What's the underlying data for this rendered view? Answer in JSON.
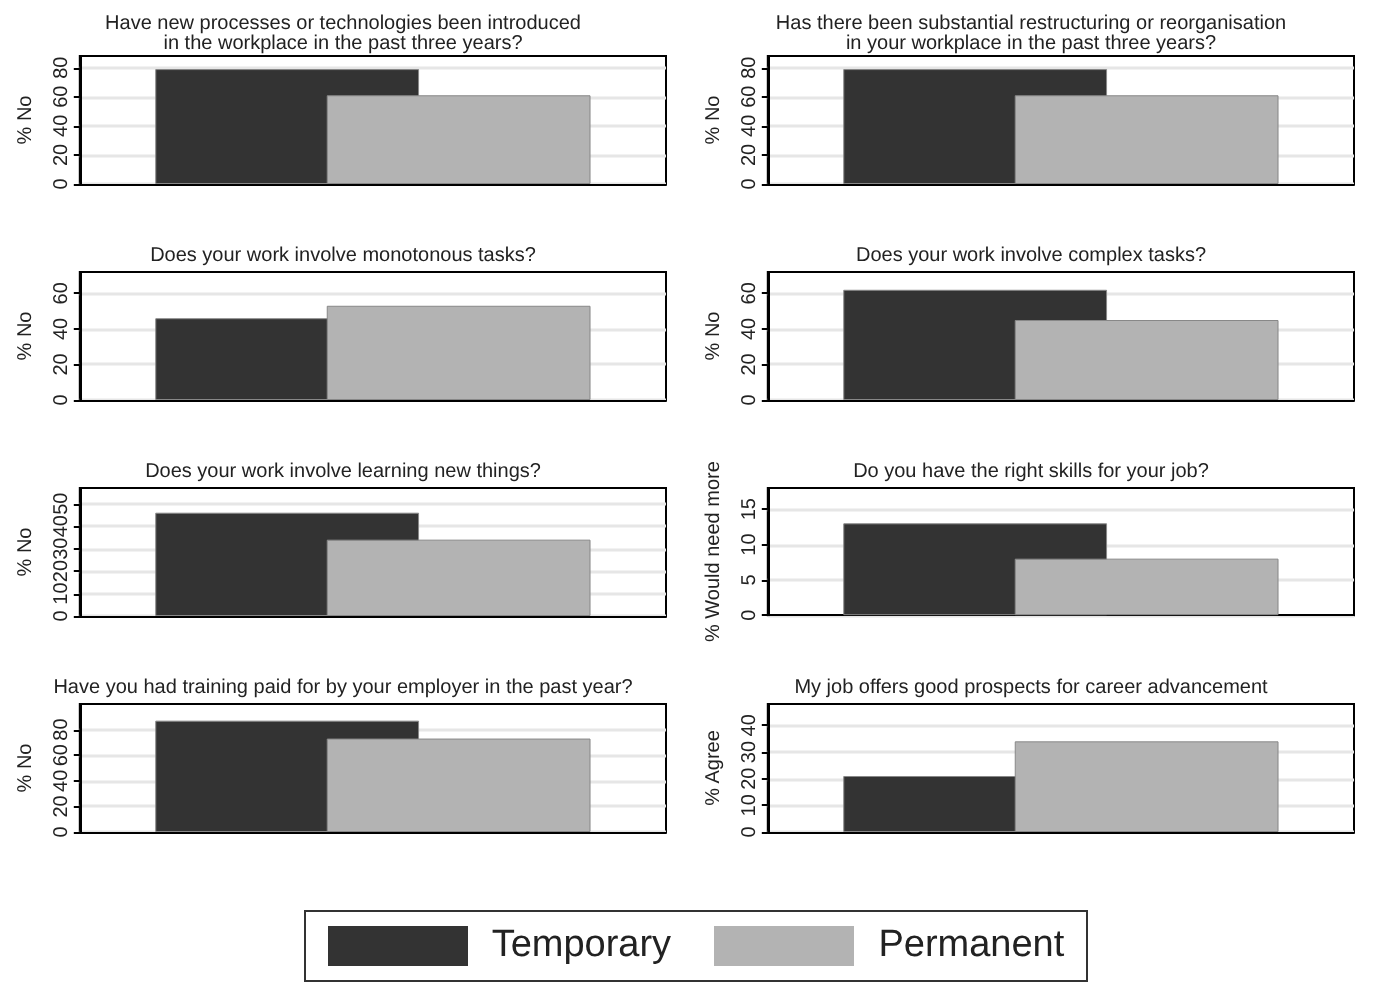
{
  "chart_data": [
    {
      "type": "bar",
      "title": "Have new processes or technologies been introduced\nin the workplace in the past three years?",
      "ylabel": "% No",
      "categories": [
        null
      ],
      "series": [
        {
          "name": "Temporary",
          "color": "#333333",
          "values": [
            79
          ]
        },
        {
          "name": "Permanent",
          "color": "#b3b3b3",
          "values": [
            61
          ]
        }
      ],
      "ylim": [
        0,
        88
      ],
      "yticks": [
        0,
        20,
        40,
        60,
        80
      ],
      "grid": "y",
      "legend": "bottom"
    },
    {
      "type": "bar",
      "title": "Has there been substantial restructuring or reorganisation\nin your workplace in the past three years?",
      "ylabel": "% No",
      "categories": [
        null
      ],
      "series": [
        {
          "name": "Temporary",
          "color": "#333333",
          "values": [
            79
          ]
        },
        {
          "name": "Permanent",
          "color": "#b3b3b3",
          "values": [
            61
          ]
        }
      ],
      "ylim": [
        0,
        88
      ],
      "yticks": [
        0,
        20,
        40,
        60,
        80
      ],
      "grid": "y",
      "legend": "bottom"
    },
    {
      "type": "bar",
      "title": "Does your work involve monotonous tasks?",
      "ylabel": "% No",
      "categories": [
        null
      ],
      "series": [
        {
          "name": "Temporary",
          "color": "#333333",
          "values": [
            46
          ]
        },
        {
          "name": "Permanent",
          "color": "#b3b3b3",
          "values": [
            53
          ]
        }
      ],
      "ylim": [
        0,
        72
      ],
      "yticks": [
        0,
        20,
        40,
        60
      ],
      "grid": "y",
      "legend": "bottom"
    },
    {
      "type": "bar",
      "title": "Does your work involve complex tasks?",
      "ylabel": "% No",
      "categories": [
        null
      ],
      "series": [
        {
          "name": "Temporary",
          "color": "#333333",
          "values": [
            62
          ]
        },
        {
          "name": "Permanent",
          "color": "#b3b3b3",
          "values": [
            45
          ]
        }
      ],
      "ylim": [
        0,
        72
      ],
      "yticks": [
        0,
        20,
        40,
        60
      ],
      "grid": "y",
      "legend": "bottom"
    },
    {
      "type": "bar",
      "title": "Does your work involve learning new things?",
      "ylabel": "% No",
      "categories": [
        null
      ],
      "series": [
        {
          "name": "Temporary",
          "color": "#333333",
          "values": [
            46
          ]
        },
        {
          "name": "Permanent",
          "color": "#b3b3b3",
          "values": [
            34
          ]
        }
      ],
      "ylim": [
        0,
        57
      ],
      "yticks": [
        0,
        10,
        20,
        30,
        40,
        50
      ],
      "grid": "y",
      "legend": "bottom"
    },
    {
      "type": "bar",
      "title": "Do you have the right skills for your job?",
      "ylabel": "% Would need more",
      "categories": [
        null
      ],
      "series": [
        {
          "name": "Temporary",
          "color": "#333333",
          "values": [
            13
          ]
        },
        {
          "name": "Permanent",
          "color": "#b3b3b3",
          "values": [
            8
          ]
        }
      ],
      "ylim": [
        0,
        18
      ],
      "yticks": [
        0,
        5,
        10,
        15
      ],
      "grid": "y",
      "legend": "bottom"
    },
    {
      "type": "bar",
      "title": "Have you had training paid for by your employer in the past year?",
      "ylabel": "% No",
      "categories": [
        null
      ],
      "series": [
        {
          "name": "Temporary",
          "color": "#333333",
          "values": [
            87
          ]
        },
        {
          "name": "Permanent",
          "color": "#b3b3b3",
          "values": [
            73
          ]
        }
      ],
      "ylim": [
        0,
        100
      ],
      "yticks": [
        0,
        20,
        40,
        60,
        80
      ],
      "grid": "y",
      "legend": "bottom"
    },
    {
      "type": "bar",
      "title": "My job offers good prospects for career advancement",
      "ylabel": "% Agree",
      "categories": [
        null
      ],
      "series": [
        {
          "name": "Temporary",
          "color": "#333333",
          "values": [
            21
          ]
        },
        {
          "name": "Permanent",
          "color": "#b3b3b3",
          "values": [
            34
          ]
        }
      ],
      "ylim": [
        0,
        48
      ],
      "yticks": [
        0,
        10,
        20,
        30,
        40
      ],
      "grid": "y",
      "legend": "bottom"
    }
  ]
}
